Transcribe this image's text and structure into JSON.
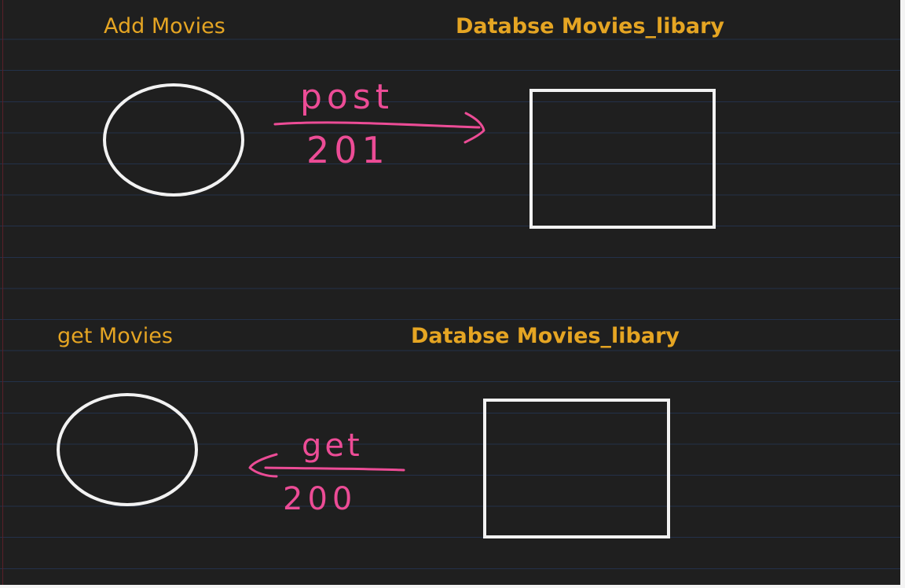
{
  "diagram": {
    "top": {
      "client_label": "Add Movies",
      "database_label": "Databse Movies_libary",
      "arrow_method": "post",
      "arrow_status": "201"
    },
    "bottom": {
      "client_label": "get Movies",
      "database_label": "Databse Movies_libary",
      "arrow_method": "get",
      "arrow_status": "200"
    }
  },
  "colors": {
    "background": "#1f1f1f",
    "heading": "#e5a523",
    "ink_pink": "#ec4c96",
    "shape_outline": "#f2f2f2",
    "ruled_line": "#23314a"
  }
}
